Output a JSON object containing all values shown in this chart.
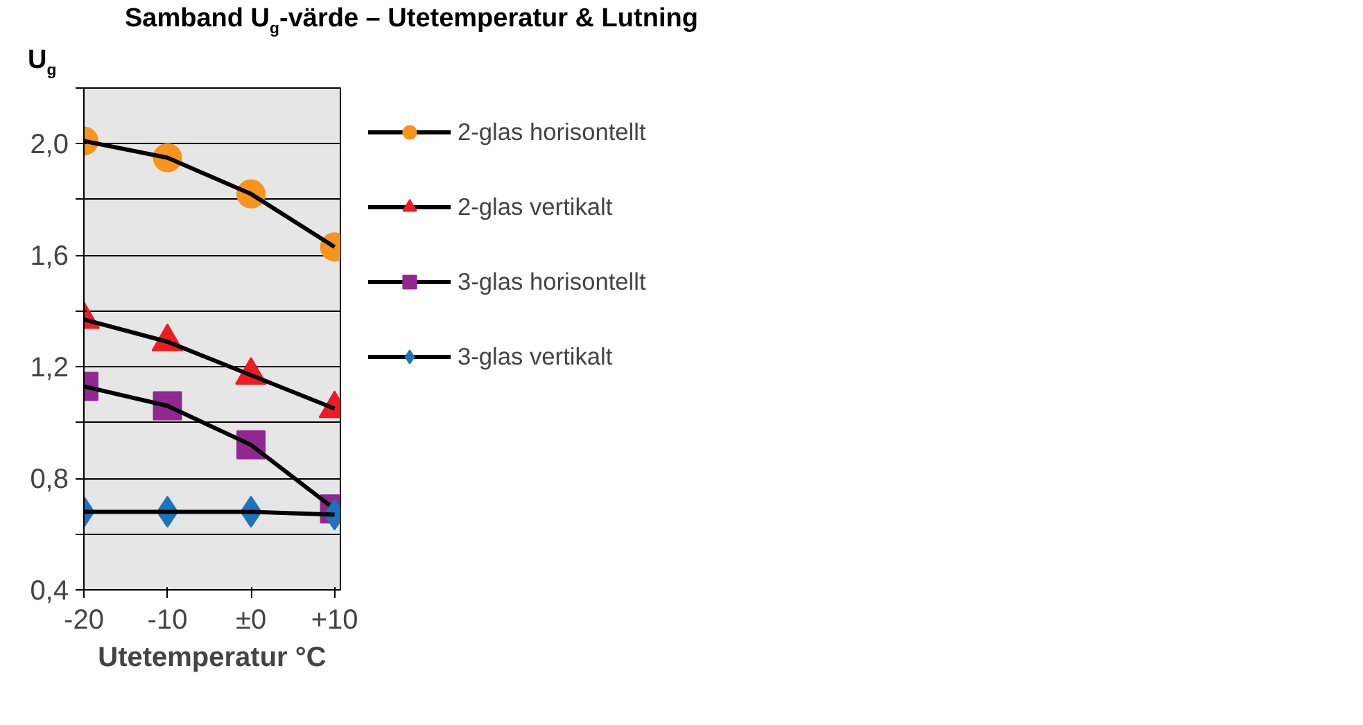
{
  "chart_data": {
    "type": "line",
    "title": "Samband U$_{g}$-värde – Utetemperatur & Lutning",
    "xlabel": "Utetemperatur °C",
    "ylabel": "U$_{g}$",
    "x": [
      -20,
      -10,
      0,
      10
    ],
    "series": [
      {
        "name": "2-glas horisontellt",
        "color": "#f7941d",
        "marker": "circle",
        "values": [
          2.01,
          1.95,
          1.82,
          1.63
        ]
      },
      {
        "name": "2-glas vertikalt",
        "color": "#ed1c24",
        "marker": "triangle",
        "values": [
          1.37,
          1.29,
          1.17,
          1.05
        ]
      },
      {
        "name": "3-glas horisontellt",
        "color": "#92278f",
        "marker": "square",
        "values": [
          1.13,
          1.06,
          0.92,
          0.69
        ]
      },
      {
        "name": "3-glas vertikalt",
        "color": "#1c75bc",
        "marker": "diamond",
        "values": [
          0.68,
          0.68,
          0.68,
          0.67
        ]
      }
    ],
    "xlim": [
      -20,
      10.7
    ],
    "xticks": [
      {
        "value": -20,
        "label": "-20"
      },
      {
        "value": -10,
        "label": "-10"
      },
      {
        "value": 0,
        "label": "±0"
      },
      {
        "value": 10,
        "label": "+10"
      }
    ],
    "ylim": [
      0.4,
      2.2
    ],
    "yticks": [
      {
        "value": 0.4,
        "label": "0,4"
      },
      {
        "value": 0.6,
        "label": null
      },
      {
        "value": 0.8,
        "label": "0,8"
      },
      {
        "value": 1.0,
        "label": null
      },
      {
        "value": 1.2,
        "label": "1,2"
      },
      {
        "value": 1.4,
        "label": null
      },
      {
        "value": 1.6,
        "label": "1,6"
      },
      {
        "value": 1.8,
        "label": null
      },
      {
        "value": 2.0,
        "label": "2,0"
      },
      {
        "value": 2.2,
        "label": null
      }
    ],
    "grid": "y",
    "legend": "right",
    "line_style": "solid"
  }
}
